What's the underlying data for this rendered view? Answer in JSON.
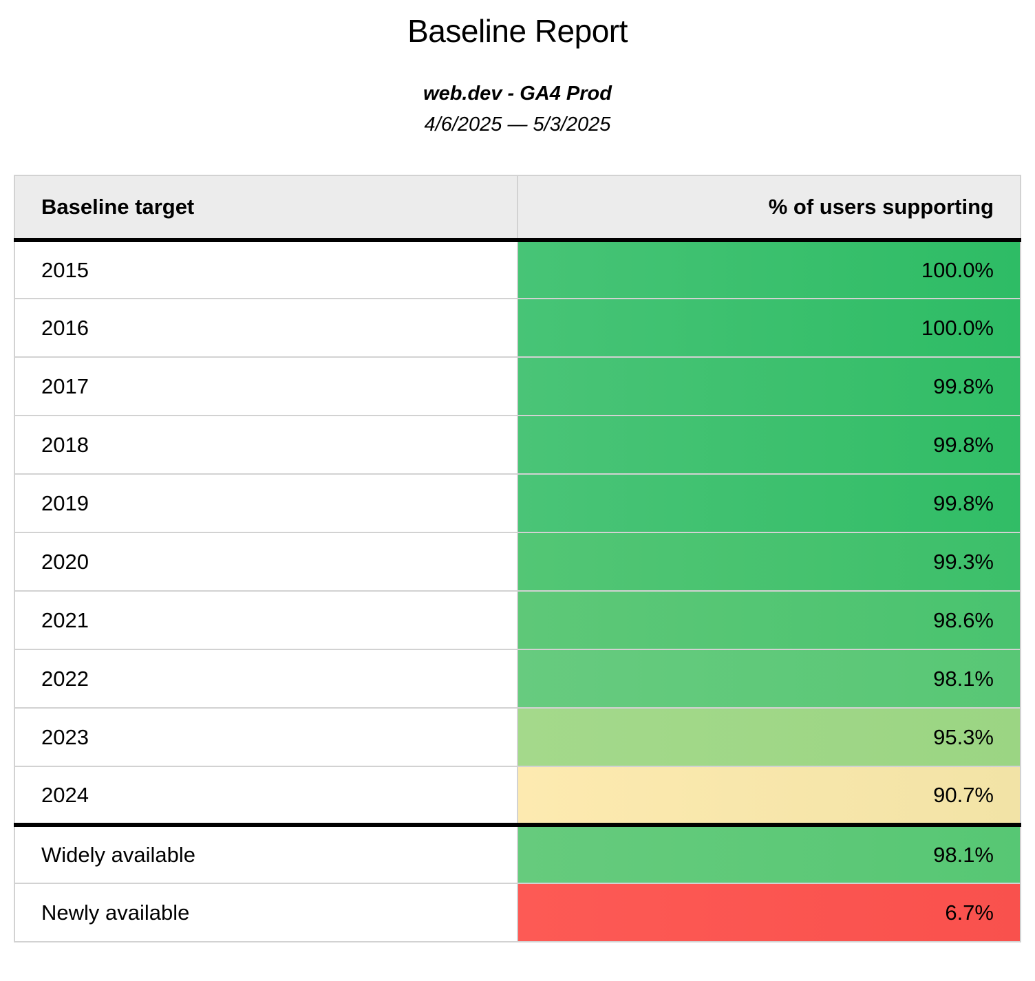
{
  "header": {
    "title": "Baseline Report",
    "subtitle": "web.dev - GA4 Prod",
    "date_range": "4/6/2025 — 5/3/2025"
  },
  "table": {
    "columns": [
      {
        "label": "Baseline target",
        "align": "left"
      },
      {
        "label": "% of users supporting",
        "align": "right"
      }
    ],
    "rows": [
      {
        "target": "2015",
        "value": "100.0%",
        "separator_before": false,
        "color": {
          "start": "#47c476",
          "end": "#2ebc65"
        }
      },
      {
        "target": "2016",
        "value": "100.0%",
        "separator_before": false,
        "color": {
          "start": "#47c476",
          "end": "#2ebc65"
        }
      },
      {
        "target": "2017",
        "value": "99.8%",
        "separator_before": false,
        "color": {
          "start": "#4ac477",
          "end": "#31bd66"
        }
      },
      {
        "target": "2018",
        "value": "99.8%",
        "separator_before": false,
        "color": {
          "start": "#4ac477",
          "end": "#31bd66"
        }
      },
      {
        "target": "2019",
        "value": "99.8%",
        "separator_before": false,
        "color": {
          "start": "#4ac477",
          "end": "#31bd66"
        }
      },
      {
        "target": "2020",
        "value": "99.3%",
        "separator_before": false,
        "color": {
          "start": "#53c675",
          "end": "#3cbf6a"
        }
      },
      {
        "target": "2021",
        "value": "98.6%",
        "separator_before": false,
        "color": {
          "start": "#5ec878",
          "end": "#49c36f"
        }
      },
      {
        "target": "2022",
        "value": "98.1%",
        "separator_before": false,
        "color": {
          "start": "#67cb7f",
          "end": "#58c775"
        }
      },
      {
        "target": "2023",
        "value": "95.3%",
        "separator_before": false,
        "color": {
          "start": "#a4d98b",
          "end": "#9bd583"
        }
      },
      {
        "target": "2024",
        "value": "90.7%",
        "separator_before": false,
        "color": {
          "start": "#fdeab0",
          "end": "#f2e3a6"
        }
      },
      {
        "target": "Widely available",
        "value": "98.1%",
        "separator_before": true,
        "color": {
          "start": "#66cb7d",
          "end": "#57c774"
        }
      },
      {
        "target": "Newly available",
        "value": "6.7%",
        "separator_before": false,
        "color": {
          "start": "#fd5a55",
          "end": "#f9514d"
        }
      }
    ],
    "style_colors": {
      "header_background": "#ececec",
      "grid_border": "#d2d2d2",
      "strong_border": "#000000",
      "text": "#000000"
    }
  },
  "chart_data": {
    "type": "table",
    "title": "Baseline Report",
    "subtitle": "web.dev - GA4 Prod",
    "date_range": "4/6/2025 — 5/3/2025",
    "columns": [
      "Baseline target",
      "% of users supporting"
    ],
    "categories": [
      "2015",
      "2016",
      "2017",
      "2018",
      "2019",
      "2020",
      "2021",
      "2022",
      "2023",
      "2024",
      "Widely available",
      "Newly available"
    ],
    "values_percent": [
      100.0,
      100.0,
      99.8,
      99.8,
      99.8,
      99.3,
      98.6,
      98.1,
      95.3,
      90.7,
      98.1,
      6.7
    ],
    "layout_hints": {
      "value_cells_color_scale": "red-yellow-green by percent",
      "thick_divider_after_row": "2024",
      "value_column_align": "right"
    }
  }
}
